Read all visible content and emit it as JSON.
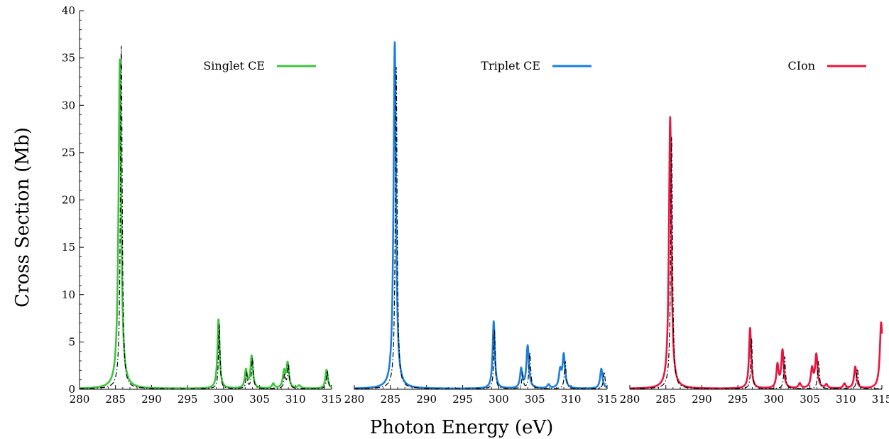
{
  "figure": {
    "xlabel": "Photon Energy (eV)",
    "ylabel": "Cross Section (Mb)"
  },
  "chart_data": [
    {
      "type": "line",
      "legend": "Singlet CE",
      "legend_position": "top-right",
      "color": "#3fc43f",
      "xlim": [
        280,
        315
      ],
      "ylim": [
        0,
        40
      ],
      "xticks": [
        "280",
        "285",
        "290",
        "295",
        "300",
        "305",
        "310",
        "315"
      ],
      "yticks": [
        "0",
        "5",
        "10",
        "15",
        "20",
        "25",
        "30",
        "35",
        "40"
      ],
      "grid": false,
      "series": [
        {
          "name": "Singlet CE",
          "style": "solid",
          "peaks": [
            [
              285.6,
              34.8,
              0.22
            ],
            [
              299.3,
              7.3,
              0.18
            ],
            [
              303.1,
              1.9,
              0.18
            ],
            [
              303.9,
              3.4,
              0.2
            ],
            [
              306.9,
              0.5,
              0.2
            ],
            [
              308.4,
              1.7,
              0.2
            ],
            [
              308.9,
              2.6,
              0.2
            ],
            [
              310.5,
              0.3,
              0.25
            ],
            [
              314.3,
              2.0,
              0.2
            ]
          ]
        },
        {
          "style": "dash-dot",
          "peaks": [
            [
              285.8,
              36.2,
              0.15
            ],
            [
              299.4,
              6.8,
              0.12
            ],
            [
              303.2,
              1.6,
              0.12
            ],
            [
              304.0,
              3.2,
              0.14
            ],
            [
              308.5,
              1.5,
              0.14
            ],
            [
              309.0,
              2.5,
              0.14
            ],
            [
              314.4,
              1.9,
              0.14
            ]
          ]
        }
      ]
    },
    {
      "type": "line",
      "legend": "Triplet CE",
      "legend_position": "top-right",
      "color": "#1a7fe0",
      "xlim": [
        280,
        315
      ],
      "ylim": [
        0,
        40
      ],
      "xticks": [
        "280",
        "285",
        "290",
        "295",
        "300",
        "305",
        "310",
        "315"
      ],
      "grid": false,
      "series": [
        {
          "name": "Triplet CE",
          "style": "solid",
          "peaks": [
            [
              285.6,
              36.6,
              0.2
            ],
            [
              299.3,
              7.1,
              0.18
            ],
            [
              303.1,
              2.0,
              0.18
            ],
            [
              304.0,
              4.5,
              0.2
            ],
            [
              306.9,
              0.4,
              0.2
            ],
            [
              308.5,
              1.8,
              0.2
            ],
            [
              309.0,
              3.5,
              0.2
            ],
            [
              314.2,
              2.1,
              0.2
            ]
          ]
        },
        {
          "style": "dash-dot",
          "peaks": [
            [
              285.8,
              34.0,
              0.15
            ],
            [
              299.4,
              6.2,
              0.12
            ],
            [
              303.3,
              1.6,
              0.12
            ],
            [
              304.3,
              3.8,
              0.14
            ],
            [
              309.2,
              2.9,
              0.14
            ],
            [
              314.6,
              1.8,
              0.14
            ]
          ]
        }
      ]
    },
    {
      "type": "line",
      "legend": "CIon",
      "legend_position": "top-right",
      "color": "#e8163f",
      "xlim": [
        280,
        315
      ],
      "ylim": [
        0,
        40
      ],
      "xticks": [
        "280",
        "285",
        "290",
        "295",
        "300",
        "305",
        "310",
        "315"
      ],
      "grid": false,
      "series": [
        {
          "name": "CIon",
          "style": "solid",
          "peaks": [
            [
              285.6,
              28.7,
              0.2
            ],
            [
              296.7,
              6.4,
              0.18
            ],
            [
              300.5,
              2.4,
              0.18
            ],
            [
              301.2,
              4.0,
              0.2
            ],
            [
              303.6,
              0.5,
              0.2
            ],
            [
              305.3,
              2.0,
              0.2
            ],
            [
              305.9,
              3.5,
              0.2
            ],
            [
              307.3,
              0.4,
              0.2
            ],
            [
              309.8,
              0.5,
              0.2
            ],
            [
              311.3,
              2.3,
              0.2
            ],
            [
              314.9,
              7.0,
              0.22
            ]
          ]
        },
        {
          "style": "dash-dot",
          "peaks": [
            [
              285.8,
              26.6,
              0.15
            ],
            [
              296.9,
              5.3,
              0.12
            ],
            [
              301.5,
              3.4,
              0.13
            ],
            [
              306.2,
              2.9,
              0.14
            ],
            [
              311.6,
              2.1,
              0.14
            ]
          ]
        }
      ]
    }
  ]
}
